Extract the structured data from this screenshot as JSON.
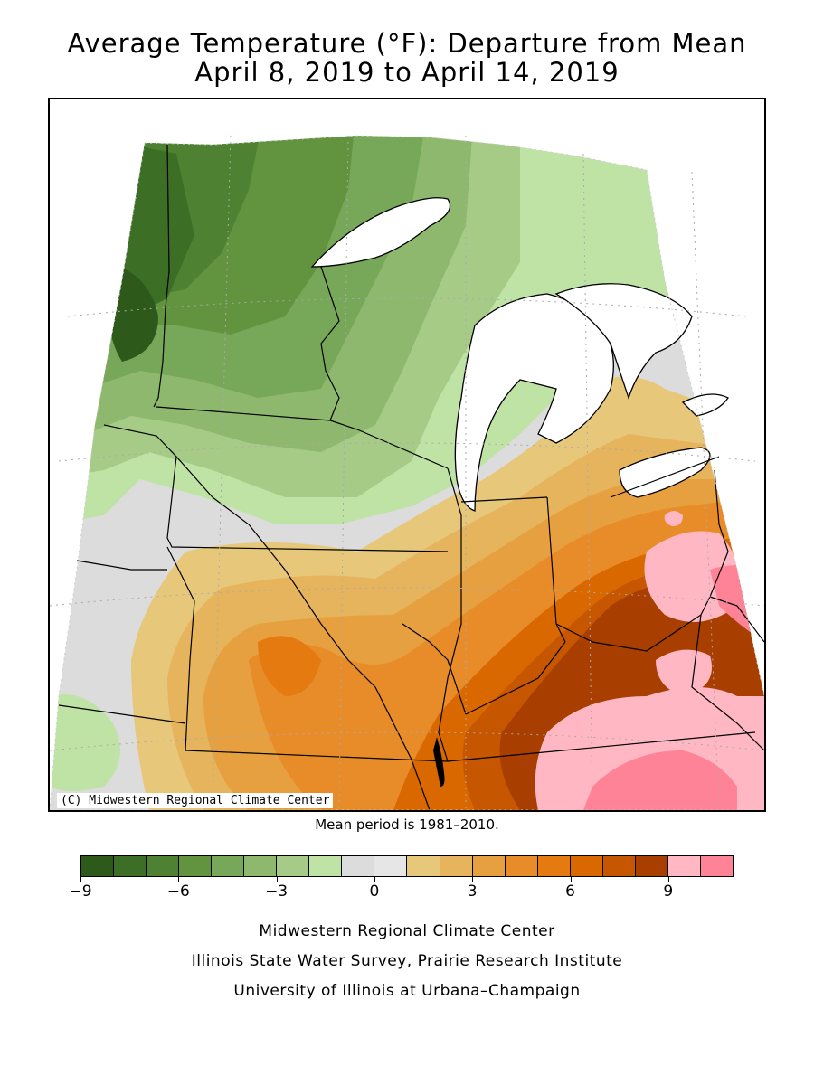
{
  "header": {
    "title_line1": "Average Temperature (°F): Departure from Mean",
    "title_line2": "April 8, 2019 to April 14, 2019"
  },
  "map": {
    "copyright": "(C) Midwestern Regional Climate Center",
    "mean_note": "Mean period is 1981–2010."
  },
  "legend": {
    "colors": [
      "#2d5a1b",
      "#3c6e26",
      "#4e8132",
      "#62943f",
      "#77a758",
      "#8eb86e",
      "#a6cb87",
      "#bfe3a5",
      "#dcdcdc",
      "#e6e6e6",
      "#e7c77a",
      "#e6b45c",
      "#e7a040",
      "#e78c28",
      "#e57a10",
      "#d96800",
      "#c65600",
      "#a83f00",
      "#ffb7c4",
      "#ff8396"
    ],
    "tick_labels": [
      "−9",
      "−6",
      "−3",
      "0",
      "3",
      "6",
      "9"
    ]
  },
  "footer": {
    "line1": "Midwestern Regional Climate Center",
    "line2": "Illinois State Water Survey, Prairie Research Institute",
    "line3": "University of Illinois at Urbana–Champaign"
  }
}
